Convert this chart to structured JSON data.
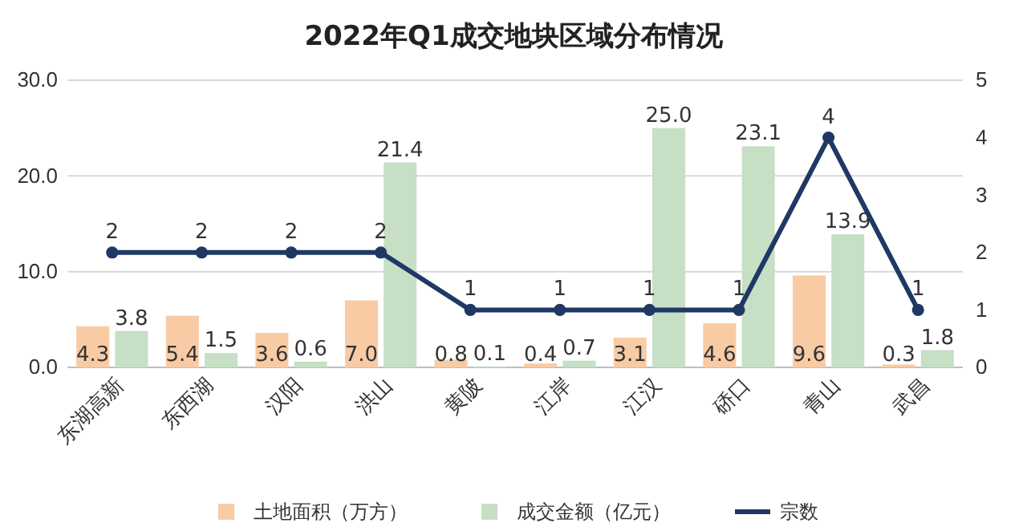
{
  "chart_data": {
    "type": "bar",
    "title": "2022年Q1成交地块区域分布情况",
    "categories": [
      "东湖高新",
      "东西湖",
      "汉阳",
      "洪山",
      "黄陂",
      "江岸",
      "江汉",
      "硚口",
      "青山",
      "武昌"
    ],
    "series": [
      {
        "name": "土地面积（万方）",
        "color": "#f8cba5",
        "values": [
          4.3,
          5.4,
          3.6,
          7.0,
          0.8,
          0.4,
          3.1,
          4.6,
          9.6,
          0.3
        ],
        "value_labels": [
          "4.3",
          "5.4",
          "3.6",
          "7.0",
          "0.8",
          "0.4",
          "3.1",
          "4.6",
          "9.6",
          "0.3"
        ]
      },
      {
        "name": "成交金额（亿元）",
        "color": "#c6dfc5",
        "values": [
          3.8,
          1.5,
          0.6,
          21.4,
          0.1,
          0.7,
          25.0,
          23.1,
          13.9,
          1.8
        ],
        "value_labels": [
          "3.8",
          "1.5",
          "0.6",
          "21.4",
          "0.1",
          "0.7",
          "25.0",
          "23.1",
          "13.9",
          "1.8"
        ]
      },
      {
        "name": "宗数",
        "type": "line",
        "axis": "y2",
        "color": "#1f3864",
        "values": [
          2,
          2,
          2,
          2,
          1,
          1,
          1,
          1,
          4,
          1
        ],
        "value_labels": [
          "2",
          "2",
          "2",
          "2",
          "1",
          "1",
          "1",
          "1",
          "4",
          "1"
        ]
      }
    ],
    "ylim": [
      0,
      30
    ],
    "yticks": [
      {
        "value": 0,
        "label": "0.0"
      },
      {
        "value": 10,
        "label": "10.0"
      },
      {
        "value": 20,
        "label": "20.0"
      },
      {
        "value": 30,
        "label": "30.0"
      }
    ],
    "y2lim": [
      0,
      5
    ],
    "y2ticks": [
      0,
      1,
      2,
      3,
      4,
      5
    ],
    "grid": "y",
    "legend": "bottom",
    "marker": "circle",
    "line_style": "solid"
  }
}
